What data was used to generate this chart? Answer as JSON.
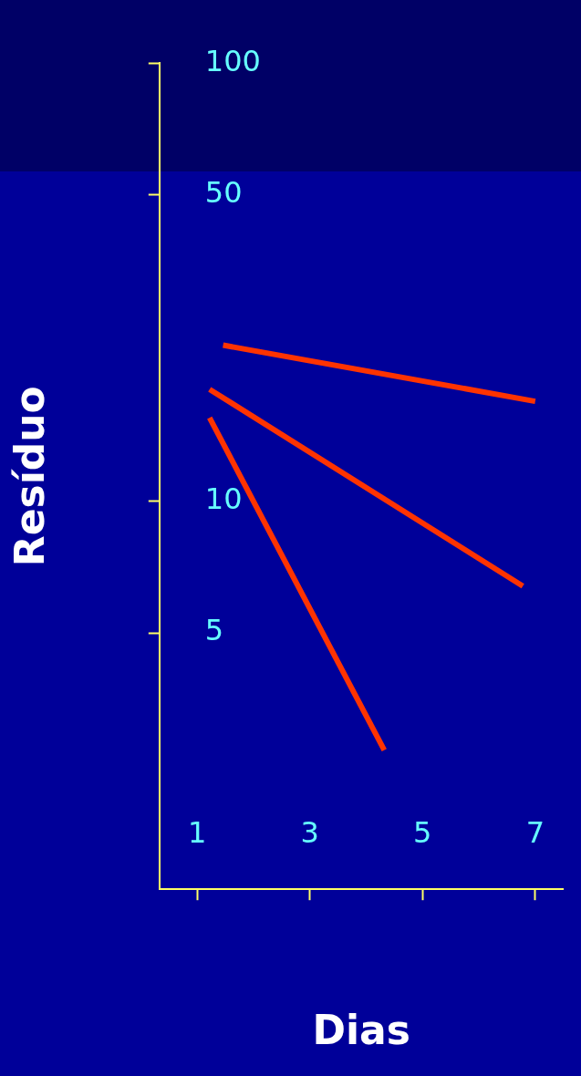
{
  "chart_data": {
    "type": "line",
    "xlabel": "Dias",
    "ylabel": "Resíduo",
    "log": "y",
    "xlim": [
      0.33,
      7.5
    ],
    "xticks": [
      1,
      3,
      5,
      7
    ],
    "ylim": [
      1.3,
      100
    ],
    "yticks": [
      5,
      10,
      50,
      100
    ],
    "grid": false,
    "legend": false,
    "marker": "none",
    "line_style": "solid",
    "series": [
      {
        "color": "#ff3300",
        "x": [
          1.46,
          7.0
        ],
        "values": [
          22.7,
          16.9
        ]
      },
      {
        "color": "#ff3300",
        "x": [
          1.22,
          6.78
        ],
        "values": [
          18,
          6.4
        ]
      },
      {
        "color": "#ff3300",
        "x": [
          1.22,
          4.32
        ],
        "values": [
          15.5,
          2.7
        ]
      }
    ]
  }
}
